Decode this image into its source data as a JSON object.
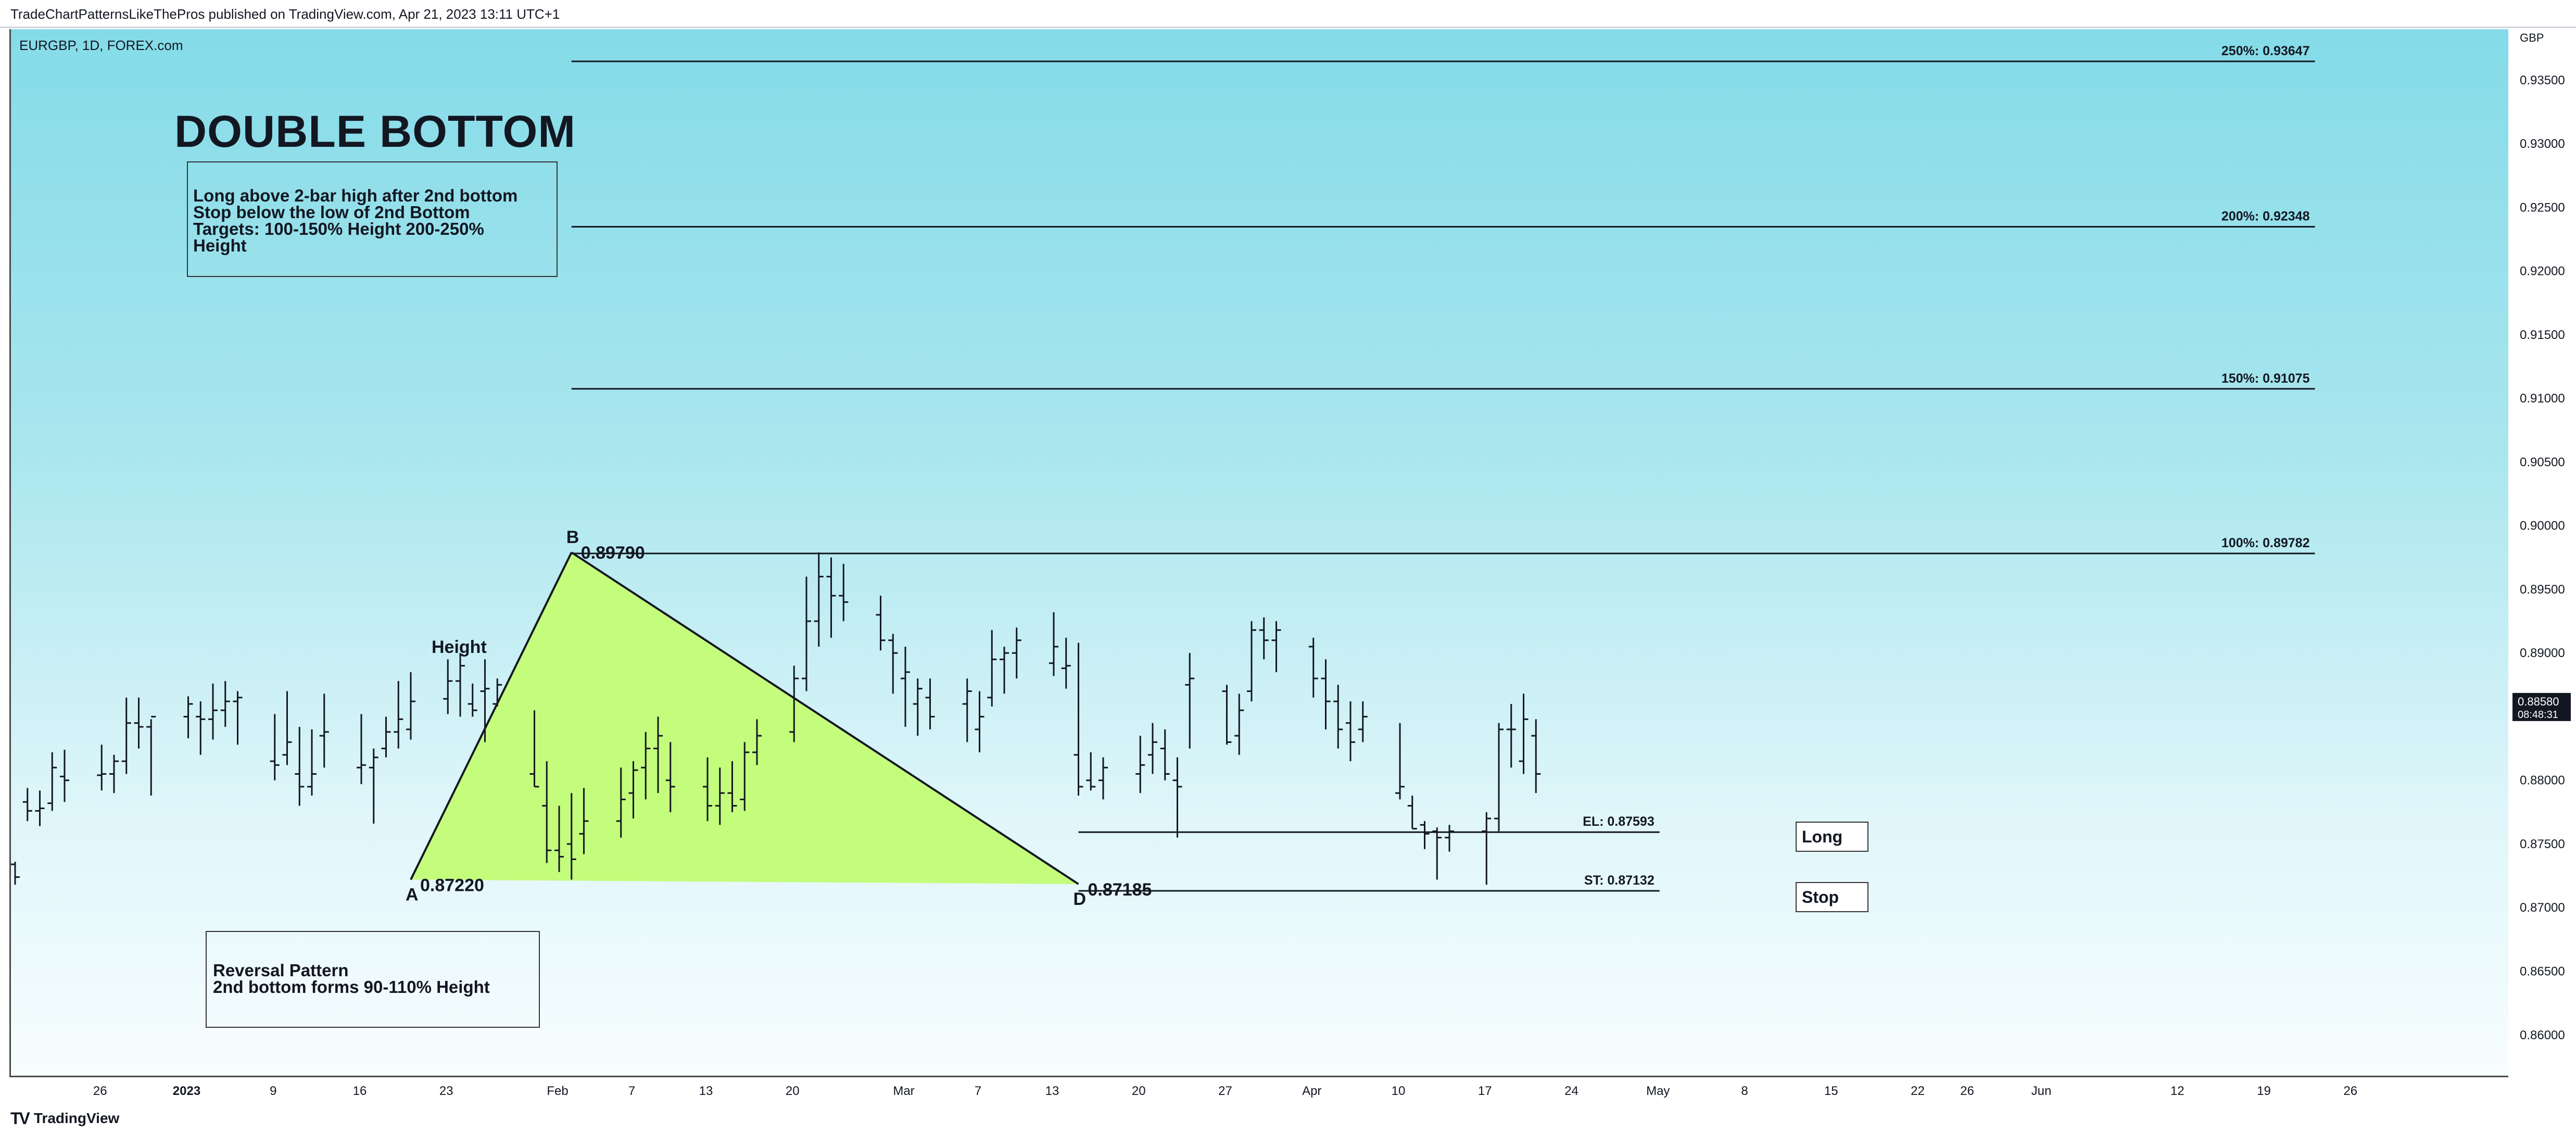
{
  "header": {
    "published_line": "TradeChartPatternsLikeThePros published on TradingView.com, Apr 21, 2023 13:11 UTC+1"
  },
  "chart": {
    "symbol_line": "EURGBP, 1D, FOREX.com",
    "title": "DOUBLE BOTTOM",
    "rules_lines": [
      "Long above 2-bar high after 2nd bottom",
      "Stop below the low of 2nd Bottom",
      "Targets: 100-150% Height 200-250%",
      "Height"
    ],
    "reversal_lines": [
      "Reversal Pattern",
      "2nd bottom forms 90-110% Height"
    ],
    "height_label": "Height",
    "long_label": "Long",
    "stop_label": "Stop",
    "current_price": "0.88580",
    "countdown": "08:48:31"
  },
  "footer": {
    "brand": "TradingView",
    "logo_mark": "TV"
  },
  "colors": {
    "background_top": "#84dbe8",
    "background_bottom": "#f8fdfe",
    "triangle_fill": "#c4fc7c",
    "bars": "#131722"
  },
  "chart_data": {
    "type": "ohlc",
    "axis_currency": "GBP",
    "ylim": [
      0.8568,
      0.939
    ],
    "y_ticks": [
      "0.86000",
      "0.86500",
      "0.87000",
      "0.87500",
      "0.88000",
      "0.88500",
      "0.89000",
      "0.89500",
      "0.90000",
      "0.90500",
      "0.91000",
      "0.91500",
      "0.92000",
      "0.92500",
      "0.93000",
      "0.93500"
    ],
    "x_ticks": [
      {
        "label": "26",
        "date": "2022-12-26"
      },
      {
        "label": "2023",
        "date": "2023-01-02"
      },
      {
        "label": "9",
        "date": "2023-01-09"
      },
      {
        "label": "16",
        "date": "2023-01-16"
      },
      {
        "label": "23",
        "date": "2023-01-23"
      },
      {
        "label": "Feb",
        "date": "2023-02-01"
      },
      {
        "label": "7",
        "date": "2023-02-07"
      },
      {
        "label": "13",
        "date": "2023-02-13"
      },
      {
        "label": "20",
        "date": "2023-02-20"
      },
      {
        "label": "Mar",
        "date": "2023-03-01"
      },
      {
        "label": "7",
        "date": "2023-03-07"
      },
      {
        "label": "13",
        "date": "2023-03-13"
      },
      {
        "label": "20",
        "date": "2023-03-20"
      },
      {
        "label": "27",
        "date": "2023-03-27"
      },
      {
        "label": "Apr",
        "date": "2023-04-03"
      },
      {
        "label": "10",
        "date": "2023-04-10"
      },
      {
        "label": "17",
        "date": "2023-04-17"
      },
      {
        "label": "24",
        "date": "2023-04-24"
      },
      {
        "label": "May",
        "date": "2023-05-01"
      },
      {
        "label": "8",
        "date": "2023-05-08"
      },
      {
        "label": "15",
        "date": "2023-05-15"
      },
      {
        "label": "22",
        "date": "2023-05-22"
      },
      {
        "label": "26",
        "date": "2023-05-26"
      },
      {
        "label": "Jun",
        "date": "2023-06-01"
      },
      {
        "label": "12",
        "date": "2023-06-12"
      },
      {
        "label": "19",
        "date": "2023-06-19"
      },
      {
        "label": "26",
        "date": "2023-06-26"
      }
    ],
    "pattern_points": [
      {
        "label": "A",
        "value": "0.87220",
        "date": "2023-01-20",
        "price": 0.8722
      },
      {
        "label": "B",
        "value": "0.89790",
        "date": "2023-02-02",
        "price": 0.8979
      },
      {
        "label": "D",
        "value": "0.87185",
        "date": "2023-03-15",
        "price": 0.87185
      }
    ],
    "levels": [
      {
        "label": "250%: 0.93647",
        "price": 0.93647,
        "from": "2023-02-02",
        "to": "2023-06-23"
      },
      {
        "label": "200%: 0.92348",
        "price": 0.92348,
        "from": "2023-02-02",
        "to": "2023-06-23"
      },
      {
        "label": "150%: 0.91075",
        "price": 0.91075,
        "from": "2023-02-02",
        "to": "2023-06-23"
      },
      {
        "label": "100%: 0.89782",
        "price": 0.89782,
        "from": "2023-02-02",
        "to": "2023-06-23"
      },
      {
        "label": "EL: 0.87593",
        "price": 0.87593,
        "from": "2023-03-15",
        "to": "2023-05-01"
      },
      {
        "label": "ST: 0.87132",
        "price": 0.87132,
        "from": "2023-03-15",
        "to": "2023-05-01"
      }
    ],
    "bars": [
      {
        "d": "2022-12-19",
        "o": 0.8734,
        "h": 0.8736,
        "l": 0.8718,
        "c": 0.8724
      },
      {
        "d": "2022-12-20",
        "o": 0.8783,
        "h": 0.8794,
        "l": 0.8768,
        "c": 0.8776
      },
      {
        "d": "2022-12-21",
        "o": 0.8776,
        "h": 0.8792,
        "l": 0.8764,
        "c": 0.8778
      },
      {
        "d": "2022-12-22",
        "o": 0.8782,
        "h": 0.8822,
        "l": 0.8776,
        "c": 0.881
      },
      {
        "d": "2022-12-23",
        "o": 0.8803,
        "h": 0.8824,
        "l": 0.8783,
        "c": 0.88
      },
      {
        "d": "2022-12-26",
        "o": 0.8804,
        "h": 0.8828,
        "l": 0.8792,
        "c": 0.8805
      },
      {
        "d": "2022-12-27",
        "o": 0.8805,
        "h": 0.882,
        "l": 0.879,
        "c": 0.8815
      },
      {
        "d": "2022-12-28",
        "o": 0.8815,
        "h": 0.8865,
        "l": 0.8805,
        "c": 0.8845
      },
      {
        "d": "2022-12-29",
        "o": 0.8845,
        "h": 0.8865,
        "l": 0.8825,
        "c": 0.8842
      },
      {
        "d": "2022-12-30",
        "o": 0.8842,
        "h": 0.8848,
        "l": 0.8788,
        "c": 0.885
      },
      {
        "d": "2023-01-02",
        "o": 0.885,
        "h": 0.8866,
        "l": 0.8833,
        "c": 0.886
      },
      {
        "d": "2023-01-03",
        "o": 0.885,
        "h": 0.8862,
        "l": 0.882,
        "c": 0.8848
      },
      {
        "d": "2023-01-04",
        "o": 0.8848,
        "h": 0.8876,
        "l": 0.8832,
        "c": 0.8855
      },
      {
        "d": "2023-01-05",
        "o": 0.8855,
        "h": 0.8878,
        "l": 0.8842,
        "c": 0.8862
      },
      {
        "d": "2023-01-06",
        "o": 0.8862,
        "h": 0.887,
        "l": 0.8828,
        "c": 0.8865
      },
      {
        "d": "2023-01-09",
        "o": 0.8815,
        "h": 0.8852,
        "l": 0.88,
        "c": 0.8812
      },
      {
        "d": "2023-01-10",
        "o": 0.882,
        "h": 0.887,
        "l": 0.8812,
        "c": 0.883
      },
      {
        "d": "2023-01-11",
        "o": 0.8805,
        "h": 0.8842,
        "l": 0.878,
        "c": 0.8795
      },
      {
        "d": "2023-01-12",
        "o": 0.8795,
        "h": 0.884,
        "l": 0.8788,
        "c": 0.8805
      },
      {
        "d": "2023-01-13",
        "o": 0.8835,
        "h": 0.8868,
        "l": 0.881,
        "c": 0.8838
      },
      {
        "d": "2023-01-16",
        "o": 0.881,
        "h": 0.8852,
        "l": 0.8797,
        "c": 0.8812
      },
      {
        "d": "2023-01-17",
        "o": 0.881,
        "h": 0.8825,
        "l": 0.8766,
        "c": 0.8818
      },
      {
        "d": "2023-01-18",
        "o": 0.8825,
        "h": 0.885,
        "l": 0.8818,
        "c": 0.8838
      },
      {
        "d": "2023-01-19",
        "o": 0.8838,
        "h": 0.8878,
        "l": 0.8825,
        "c": 0.8848
      },
      {
        "d": "2023-01-20",
        "o": 0.884,
        "h": 0.8885,
        "l": 0.8832,
        "c": 0.8862
      },
      {
        "d": "2023-01-23",
        "o": 0.8864,
        "h": 0.8895,
        "l": 0.8852,
        "c": 0.8878
      },
      {
        "d": "2023-01-24",
        "o": 0.8878,
        "h": 0.89,
        "l": 0.885,
        "c": 0.889
      },
      {
        "d": "2023-01-25",
        "o": 0.886,
        "h": 0.8876,
        "l": 0.885,
        "c": 0.8855
      },
      {
        "d": "2023-01-26",
        "o": 0.887,
        "h": 0.8895,
        "l": 0.883,
        "c": 0.8872
      },
      {
        "d": "2023-01-27",
        "o": 0.886,
        "h": 0.888,
        "l": 0.8858,
        "c": 0.8875
      },
      {
        "d": "2023-01-30",
        "o": 0.8805,
        "h": 0.8855,
        "l": 0.8795,
        "c": 0.8795
      },
      {
        "d": "2023-01-31",
        "o": 0.878,
        "h": 0.8815,
        "l": 0.8735,
        "c": 0.8745
      },
      {
        "d": "2023-02-01",
        "o": 0.8745,
        "h": 0.878,
        "l": 0.8728,
        "c": 0.874
      },
      {
        "d": "2023-02-02",
        "o": 0.875,
        "h": 0.879,
        "l": 0.8722,
        "c": 0.8738
      },
      {
        "d": "2023-02-03",
        "o": 0.8758,
        "h": 0.8794,
        "l": 0.8742,
        "c": 0.8768
      },
      {
        "d": "2023-02-06",
        "o": 0.8768,
        "h": 0.881,
        "l": 0.8755,
        "c": 0.8785
      },
      {
        "d": "2023-02-07",
        "o": 0.879,
        "h": 0.8815,
        "l": 0.877,
        "c": 0.8808
      },
      {
        "d": "2023-02-08",
        "o": 0.881,
        "h": 0.8838,
        "l": 0.8785,
        "c": 0.8825
      },
      {
        "d": "2023-02-09",
        "o": 0.8825,
        "h": 0.885,
        "l": 0.879,
        "c": 0.8835
      },
      {
        "d": "2023-02-10",
        "o": 0.88,
        "h": 0.883,
        "l": 0.8775,
        "c": 0.8795
      },
      {
        "d": "2023-02-13",
        "o": 0.8795,
        "h": 0.8818,
        "l": 0.8768,
        "c": 0.878
      },
      {
        "d": "2023-02-14",
        "o": 0.878,
        "h": 0.881,
        "l": 0.8765,
        "c": 0.879
      },
      {
        "d": "2023-02-15",
        "o": 0.879,
        "h": 0.8815,
        "l": 0.8775,
        "c": 0.878
      },
      {
        "d": "2023-02-16",
        "o": 0.8785,
        "h": 0.883,
        "l": 0.8776,
        "c": 0.8822
      },
      {
        "d": "2023-02-17",
        "o": 0.8822,
        "h": 0.8848,
        "l": 0.8812,
        "c": 0.8835
      },
      {
        "d": "2023-02-20",
        "o": 0.8838,
        "h": 0.889,
        "l": 0.883,
        "c": 0.888
      },
      {
        "d": "2023-02-21",
        "o": 0.888,
        "h": 0.896,
        "l": 0.887,
        "c": 0.8925
      },
      {
        "d": "2023-02-22",
        "o": 0.8925,
        "h": 0.8979,
        "l": 0.8905,
        "c": 0.896
      },
      {
        "d": "2023-02-23",
        "o": 0.896,
        "h": 0.8975,
        "l": 0.8912,
        "c": 0.8945
      },
      {
        "d": "2023-02-24",
        "o": 0.8945,
        "h": 0.897,
        "l": 0.8925,
        "c": 0.894
      },
      {
        "d": "2023-02-27",
        "o": 0.893,
        "h": 0.8945,
        "l": 0.8902,
        "c": 0.891
      },
      {
        "d": "2023-02-28",
        "o": 0.891,
        "h": 0.8915,
        "l": 0.8868,
        "c": 0.89
      },
      {
        "d": "2023-03-01",
        "o": 0.888,
        "h": 0.8905,
        "l": 0.8842,
        "c": 0.8885
      },
      {
        "d": "2023-03-02",
        "o": 0.886,
        "h": 0.888,
        "l": 0.8835,
        "c": 0.8872
      },
      {
        "d": "2023-03-03",
        "o": 0.8865,
        "h": 0.888,
        "l": 0.884,
        "c": 0.885
      },
      {
        "d": "2023-03-06",
        "o": 0.886,
        "h": 0.888,
        "l": 0.883,
        "c": 0.887
      },
      {
        "d": "2023-03-07",
        "o": 0.884,
        "h": 0.887,
        "l": 0.8822,
        "c": 0.885
      },
      {
        "d": "2023-03-08",
        "o": 0.8865,
        "h": 0.8918,
        "l": 0.8858,
        "c": 0.8895
      },
      {
        "d": "2023-03-09",
        "o": 0.8895,
        "h": 0.8905,
        "l": 0.8868,
        "c": 0.89
      },
      {
        "d": "2023-03-10",
        "o": 0.89,
        "h": 0.892,
        "l": 0.888,
        "c": 0.891
      },
      {
        "d": "2023-03-13",
        "o": 0.8892,
        "h": 0.8932,
        "l": 0.8882,
        "c": 0.8905
      },
      {
        "d": "2023-03-14",
        "o": 0.8888,
        "h": 0.8912,
        "l": 0.8872,
        "c": 0.889
      },
      {
        "d": "2023-03-15",
        "o": 0.882,
        "h": 0.8908,
        "l": 0.8788,
        "c": 0.8795
      }
    ],
    "bars_2": [
      {
        "d": "2023-03-16",
        "o": 0.88,
        "h": 0.8822,
        "l": 0.8792,
        "c": 0.8795
      },
      {
        "d": "2023-03-17",
        "o": 0.88,
        "h": 0.8818,
        "l": 0.8785,
        "c": 0.881
      },
      {
        "d": "2023-03-20",
        "o": 0.8805,
        "h": 0.8835,
        "l": 0.879,
        "c": 0.8812
      },
      {
        "d": "2023-03-21",
        "o": 0.882,
        "h": 0.8845,
        "l": 0.8805,
        "c": 0.883
      },
      {
        "d": "2023-03-22",
        "o": 0.8825,
        "h": 0.884,
        "l": 0.88,
        "c": 0.8805
      },
      {
        "d": "2023-03-23",
        "o": 0.88,
        "h": 0.8818,
        "l": 0.8755,
        "c": 0.8795
      },
      {
        "d": "2023-03-24",
        "o": 0.8875,
        "h": 0.89,
        "l": 0.8825,
        "c": 0.888
      },
      {
        "d": "2023-03-27",
        "o": 0.887,
        "h": 0.8875,
        "l": 0.8828,
        "c": 0.883
      },
      {
        "d": "2023-03-28",
        "o": 0.8835,
        "h": 0.8868,
        "l": 0.882,
        "c": 0.8855
      },
      {
        "d": "2023-03-29",
        "o": 0.887,
        "h": 0.8925,
        "l": 0.8862,
        "c": 0.8918
      },
      {
        "d": "2023-03-30",
        "o": 0.8918,
        "h": 0.8928,
        "l": 0.8895,
        "c": 0.891
      },
      {
        "d": "2023-03-31",
        "o": 0.891,
        "h": 0.8925,
        "l": 0.8885,
        "c": 0.8918
      },
      {
        "d": "2023-04-03",
        "o": 0.8905,
        "h": 0.8912,
        "l": 0.8865,
        "c": 0.888
      },
      {
        "d": "2023-04-04",
        "o": 0.888,
        "h": 0.8895,
        "l": 0.884,
        "c": 0.8862
      },
      {
        "d": "2023-04-05",
        "o": 0.8862,
        "h": 0.8875,
        "l": 0.8825,
        "c": 0.884
      },
      {
        "d": "2023-04-06",
        "o": 0.8845,
        "h": 0.8862,
        "l": 0.8815,
        "c": 0.883
      },
      {
        "d": "2023-04-07",
        "o": 0.884,
        "h": 0.8862,
        "l": 0.883,
        "c": 0.885
      },
      {
        "d": "2023-04-10",
        "o": 0.879,
        "h": 0.8845,
        "l": 0.8785,
        "c": 0.8795
      },
      {
        "d": "2023-04-11",
        "o": 0.878,
        "h": 0.8788,
        "l": 0.8762,
        "c": 0.8762
      },
      {
        "d": "2023-04-12",
        "o": 0.8765,
        "h": 0.8768,
        "l": 0.8746,
        "c": 0.8758
      },
      {
        "d": "2023-04-13",
        "o": 0.876,
        "h": 0.8763,
        "l": 0.8722,
        "c": 0.8755
      },
      {
        "d": "2023-04-14",
        "o": 0.8755,
        "h": 0.8765,
        "l": 0.8744,
        "c": 0.876
      },
      {
        "d": "2023-04-17",
        "o": 0.876,
        "h": 0.8775,
        "l": 0.8718,
        "c": 0.877
      },
      {
        "d": "2023-04-18",
        "o": 0.877,
        "h": 0.8845,
        "l": 0.876,
        "c": 0.884
      },
      {
        "d": "2023-04-19",
        "o": 0.884,
        "h": 0.886,
        "l": 0.881,
        "c": 0.884
      },
      {
        "d": "2023-04-20",
        "o": 0.8815,
        "h": 0.8868,
        "l": 0.8805,
        "c": 0.8848
      },
      {
        "d": "2023-04-21",
        "o": 0.8835,
        "h": 0.8848,
        "l": 0.879,
        "c": 0.8805
      }
    ]
  }
}
